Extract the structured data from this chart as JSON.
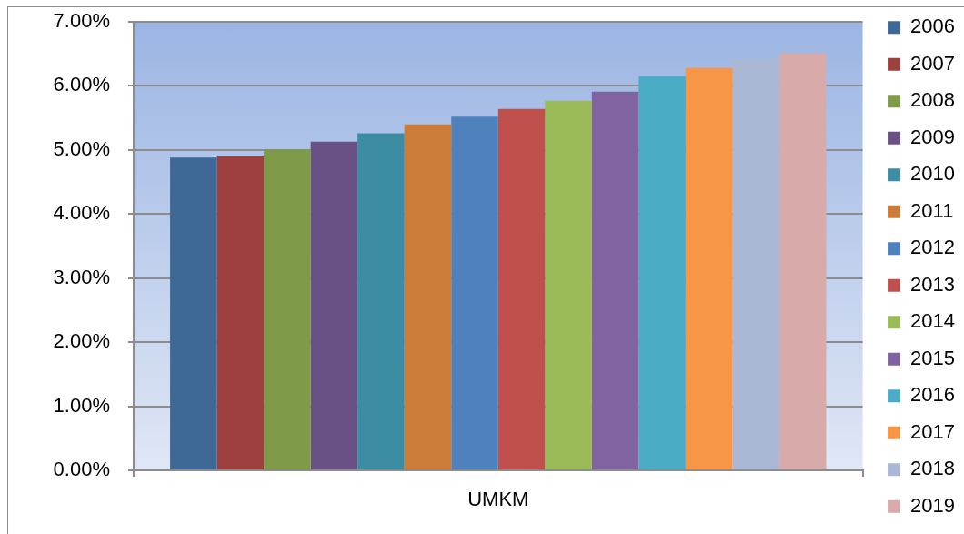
{
  "chart_data": {
    "type": "bar",
    "categories": [
      "UMKM"
    ],
    "series": [
      {
        "name": "2006",
        "color": "#3e6896",
        "values": [
          4.88
        ]
      },
      {
        "name": "2007",
        "color": "#9e413e",
        "values": [
          4.9
        ]
      },
      {
        "name": "2008",
        "color": "#7f9a48",
        "values": [
          5.01
        ]
      },
      {
        "name": "2009",
        "color": "#695185",
        "values": [
          5.13
        ]
      },
      {
        "name": "2010",
        "color": "#3c8da3",
        "values": [
          5.26
        ]
      },
      {
        "name": "2011",
        "color": "#cc7b38",
        "values": [
          5.4
        ]
      },
      {
        "name": "2012",
        "color": "#4f81bd",
        "values": [
          5.52
        ]
      },
      {
        "name": "2013",
        "color": "#c0504d",
        "values": [
          5.64
        ]
      },
      {
        "name": "2014",
        "color": "#9bbb59",
        "values": [
          5.77
        ]
      },
      {
        "name": "2015",
        "color": "#8064a2",
        "values": [
          5.91
        ]
      },
      {
        "name": "2016",
        "color": "#4bacc6",
        "values": [
          6.15
        ]
      },
      {
        "name": "2017",
        "color": "#f79646",
        "values": [
          6.28
        ]
      },
      {
        "name": "2018",
        "color": "#aab8d6",
        "values": [
          6.41
        ]
      },
      {
        "name": "2019",
        "color": "#d9aaaa",
        "values": [
          6.51
        ]
      }
    ],
    "ylim": [
      0,
      7
    ],
    "yticks": [
      {
        "value": 0,
        "label": "0.00%"
      },
      {
        "value": 1,
        "label": "1.00%"
      },
      {
        "value": 2,
        "label": "2.00%"
      },
      {
        "value": 3,
        "label": "3.00%"
      },
      {
        "value": 4,
        "label": "4.00%"
      },
      {
        "value": 5,
        "label": "5.00%"
      },
      {
        "value": 6,
        "label": "6.00%"
      },
      {
        "value": 7,
        "label": "7.00%"
      }
    ],
    "grid": "y",
    "legend": "right"
  }
}
